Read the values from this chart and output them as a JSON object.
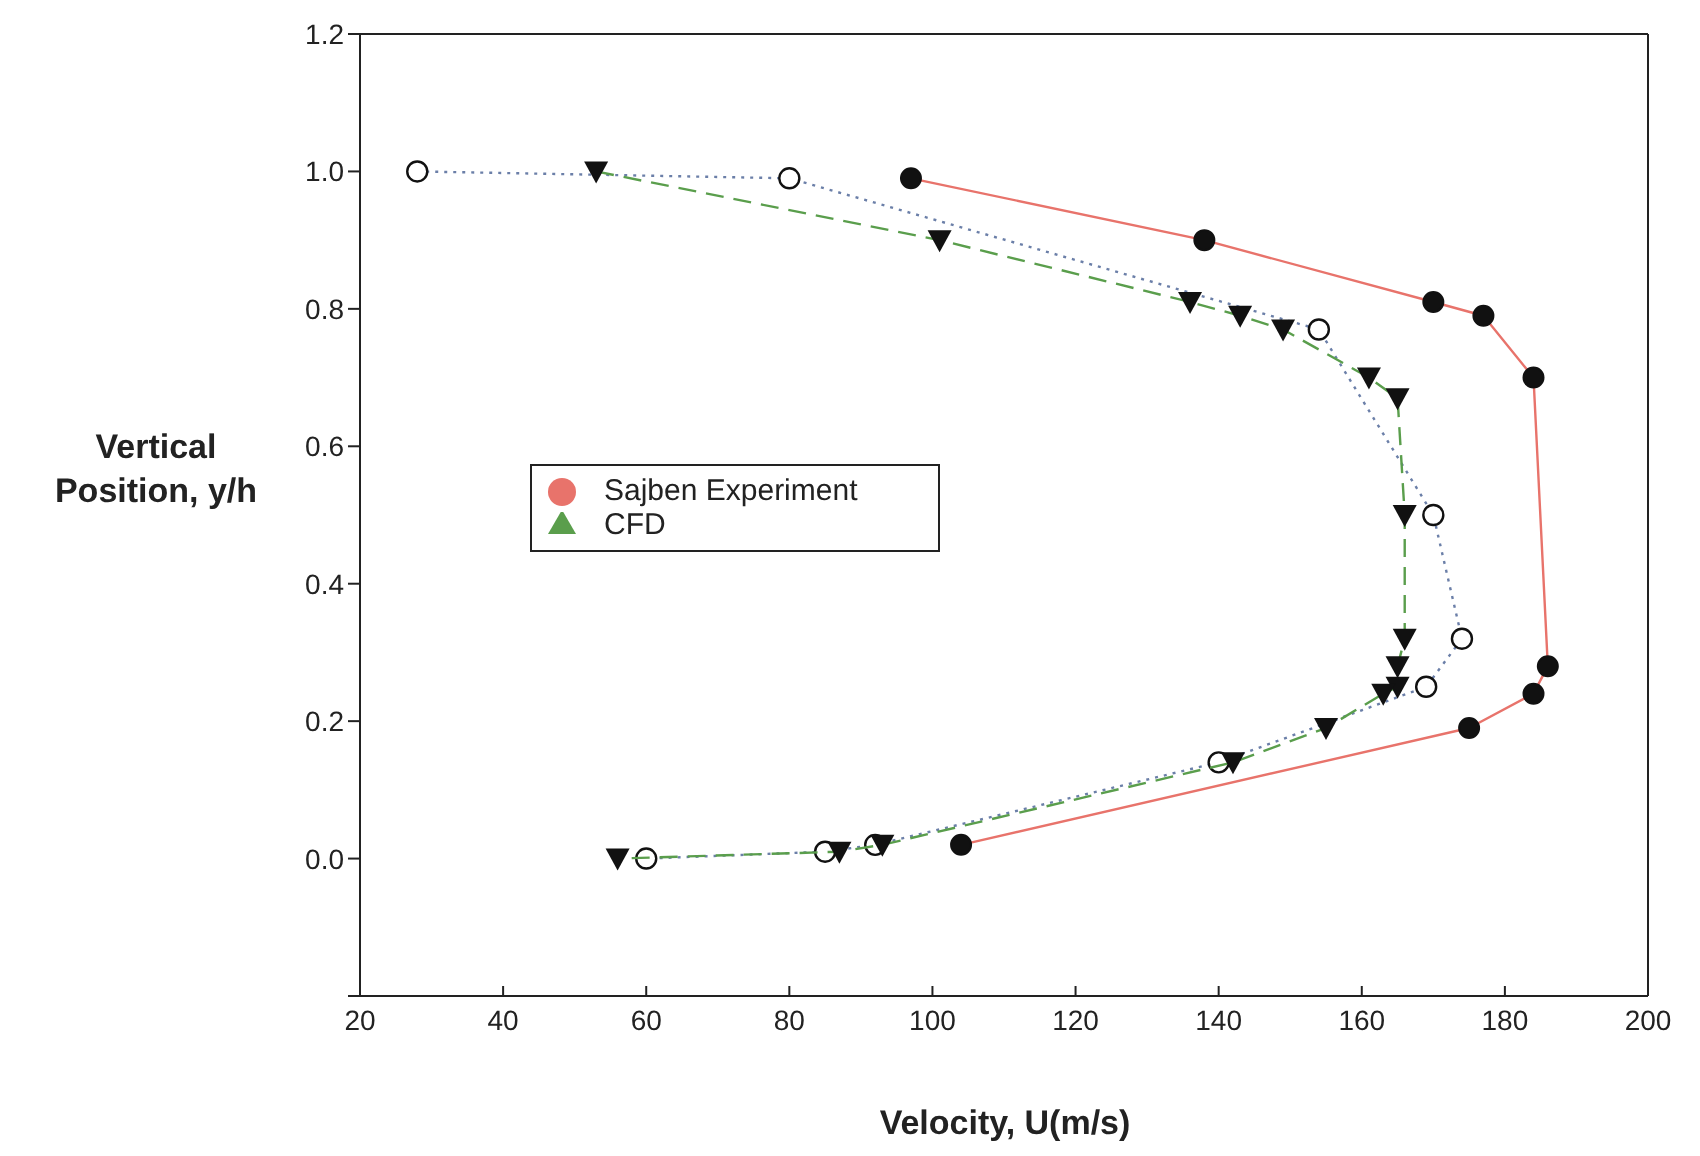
{
  "chart_data": {
    "type": "line",
    "xlabel": "Velocity, U(m/s)",
    "ylabel": "Vertical Position, y/h",
    "xlim": [
      20,
      200
    ],
    "xticks": [
      20,
      40,
      60,
      80,
      100,
      120,
      140,
      160,
      180,
      200
    ],
    "ylim": [
      -0.2,
      1.2
    ],
    "yticks": [
      {
        "value": -0.2,
        "label": null
      },
      {
        "value": 0,
        "label": "0.0"
      },
      0.2,
      0.4,
      0.6,
      0.8,
      {
        "value": 1,
        "label": "1.0"
      },
      1.2
    ],
    "legend": "left",
    "series": [
      {
        "name": "Sajben Experiment",
        "color": "#e8736b",
        "marker": "circle",
        "line_style": "solid",
        "x": [
          97,
          138,
          170,
          177,
          184,
          186,
          184,
          175,
          104
        ],
        "values": [
          0.99,
          0.9,
          0.81,
          0.79,
          0.7,
          0.28,
          0.24,
          0.19,
          0.02
        ]
      },
      {
        "color": "#6b7fa8",
        "marker": "open circle",
        "line_style": "dotted",
        "x": [
          28,
          80,
          154,
          170,
          174,
          169,
          140,
          92,
          85,
          60
        ],
        "values": [
          1.0,
          0.99,
          0.77,
          0.5,
          0.32,
          0.25,
          0.14,
          0.02,
          0.01,
          0.0
        ]
      },
      {
        "name": "CFD",
        "color": "#5a9e4c",
        "marker": "triangle",
        "line_style": "dashed",
        "x": [
          53,
          101,
          136,
          143,
          149,
          161,
          165,
          166,
          166,
          165,
          165,
          163,
          155,
          142,
          93,
          87,
          56
        ],
        "values": [
          1.0,
          0.9,
          0.81,
          0.79,
          0.77,
          0.7,
          0.67,
          0.5,
          0.32,
          0.28,
          0.25,
          0.24,
          0.19,
          0.14,
          0.02,
          0.01,
          0.0
        ]
      }
    ]
  }
}
